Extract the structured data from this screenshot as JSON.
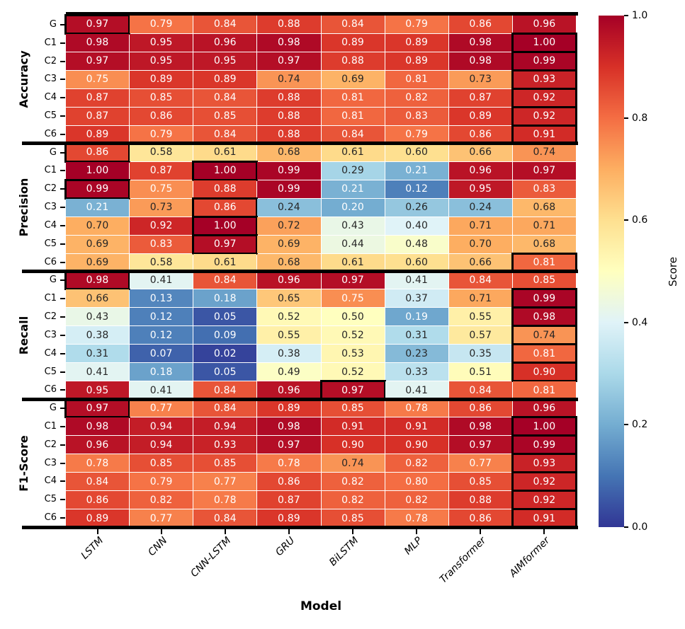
{
  "chart_data": {
    "type": "heatmap",
    "xlabel": "Model",
    "colorbar_label": "Score",
    "colormap": "RdYlBu_r",
    "vmin": 0.0,
    "vmax": 1.0,
    "colormap_stops": [
      "#313695",
      "#4575b4",
      "#74add1",
      "#abd9e9",
      "#e0f3f8",
      "#ffffbf",
      "#fee090",
      "#fdae61",
      "#f46d43",
      "#d73027",
      "#a50026"
    ],
    "annotation_text_colors": {
      "dark": "#262626",
      "light": "#ffffff"
    },
    "highlight_box_color": "#000000",
    "models": [
      "LSTM",
      "CNN",
      "CNN-LSTM",
      "GRU",
      "BiLSTM",
      "MLP",
      "Transformer",
      "AIMformer"
    ],
    "row_labels": [
      "G",
      "C1",
      "C2",
      "C3",
      "C4",
      "C5",
      "C6"
    ],
    "colorbar_ticks": [
      "1.0",
      "0.8",
      "0.6",
      "0.4",
      "0.2",
      "0.0"
    ],
    "sections": [
      {
        "metric": "Accuracy",
        "rows": [
          [
            0.97,
            0.79,
            0.84,
            0.88,
            0.84,
            0.79,
            0.86,
            0.96
          ],
          [
            0.98,
            0.95,
            0.96,
            0.98,
            0.89,
            0.89,
            0.98,
            1.0
          ],
          [
            0.97,
            0.95,
            0.95,
            0.97,
            0.88,
            0.89,
            0.98,
            0.99
          ],
          [
            0.75,
            0.89,
            0.89,
            0.74,
            0.69,
            0.81,
            0.73,
            0.93
          ],
          [
            0.87,
            0.85,
            0.84,
            0.88,
            0.81,
            0.82,
            0.87,
            0.92
          ],
          [
            0.87,
            0.86,
            0.85,
            0.88,
            0.81,
            0.83,
            0.89,
            0.92
          ],
          [
            0.89,
            0.79,
            0.84,
            0.88,
            0.84,
            0.79,
            0.86,
            0.91
          ]
        ],
        "highlights": [
          [
            0,
            0
          ],
          [
            1,
            7
          ],
          [
            2,
            7
          ],
          [
            3,
            7
          ],
          [
            4,
            7
          ],
          [
            5,
            7
          ],
          [
            6,
            7
          ]
        ]
      },
      {
        "metric": "Precision",
        "rows": [
          [
            0.86,
            0.58,
            0.61,
            0.68,
            0.61,
            0.6,
            0.66,
            0.74
          ],
          [
            1.0,
            0.87,
            1.0,
            0.99,
            0.29,
            0.21,
            0.96,
            0.97
          ],
          [
            0.99,
            0.75,
            0.88,
            0.99,
            0.21,
            0.12,
            0.95,
            0.83
          ],
          [
            0.21,
            0.73,
            0.86,
            0.24,
            0.2,
            0.26,
            0.24,
            0.68
          ],
          [
            0.7,
            0.92,
            1.0,
            0.72,
            0.43,
            0.4,
            0.71,
            0.71
          ],
          [
            0.69,
            0.83,
            0.97,
            0.69,
            0.44,
            0.48,
            0.7,
            0.68
          ],
          [
            0.69,
            0.58,
            0.61,
            0.68,
            0.61,
            0.6,
            0.66,
            0.81
          ]
        ],
        "highlights": [
          [
            0,
            0
          ],
          [
            1,
            2
          ],
          [
            2,
            0
          ],
          [
            3,
            2
          ],
          [
            4,
            2
          ],
          [
            5,
            2
          ],
          [
            6,
            7
          ]
        ]
      },
      {
        "metric": "Recall",
        "rows": [
          [
            0.98,
            0.41,
            0.84,
            0.96,
            0.97,
            0.41,
            0.84,
            0.85
          ],
          [
            0.66,
            0.13,
            0.18,
            0.65,
            0.75,
            0.37,
            0.71,
            0.99
          ],
          [
            0.43,
            0.12,
            0.05,
            0.52,
            0.5,
            0.19,
            0.55,
            0.98
          ],
          [
            0.38,
            0.12,
            0.09,
            0.55,
            0.52,
            0.31,
            0.57,
            0.74
          ],
          [
            0.31,
            0.07,
            0.02,
            0.38,
            0.53,
            0.23,
            0.35,
            0.81
          ],
          [
            0.41,
            0.18,
            0.05,
            0.49,
            0.52,
            0.33,
            0.51,
            0.9
          ],
          [
            0.95,
            0.41,
            0.84,
            0.96,
            0.97,
            0.41,
            0.84,
            0.81
          ]
        ],
        "highlights": [
          [
            0,
            0
          ],
          [
            1,
            7
          ],
          [
            2,
            7
          ],
          [
            3,
            7
          ],
          [
            4,
            7
          ],
          [
            5,
            7
          ],
          [
            6,
            4
          ]
        ]
      },
      {
        "metric": "F1-Score",
        "rows": [
          [
            0.97,
            0.77,
            0.84,
            0.89,
            0.85,
            0.78,
            0.86,
            0.96
          ],
          [
            0.98,
            0.94,
            0.94,
            0.98,
            0.91,
            0.91,
            0.98,
            1.0
          ],
          [
            0.96,
            0.94,
            0.93,
            0.97,
            0.9,
            0.9,
            0.97,
            0.99
          ],
          [
            0.78,
            0.85,
            0.85,
            0.78,
            0.74,
            0.82,
            0.77,
            0.93
          ],
          [
            0.84,
            0.79,
            0.77,
            0.86,
            0.82,
            0.8,
            0.85,
            0.92
          ],
          [
            0.86,
            0.82,
            0.78,
            0.87,
            0.82,
            0.82,
            0.88,
            0.92
          ],
          [
            0.89,
            0.77,
            0.84,
            0.89,
            0.85,
            0.78,
            0.86,
            0.91
          ]
        ],
        "highlights": [
          [
            0,
            0
          ],
          [
            1,
            7
          ],
          [
            2,
            7
          ],
          [
            3,
            7
          ],
          [
            4,
            7
          ],
          [
            5,
            7
          ],
          [
            6,
            7
          ]
        ]
      }
    ]
  }
}
